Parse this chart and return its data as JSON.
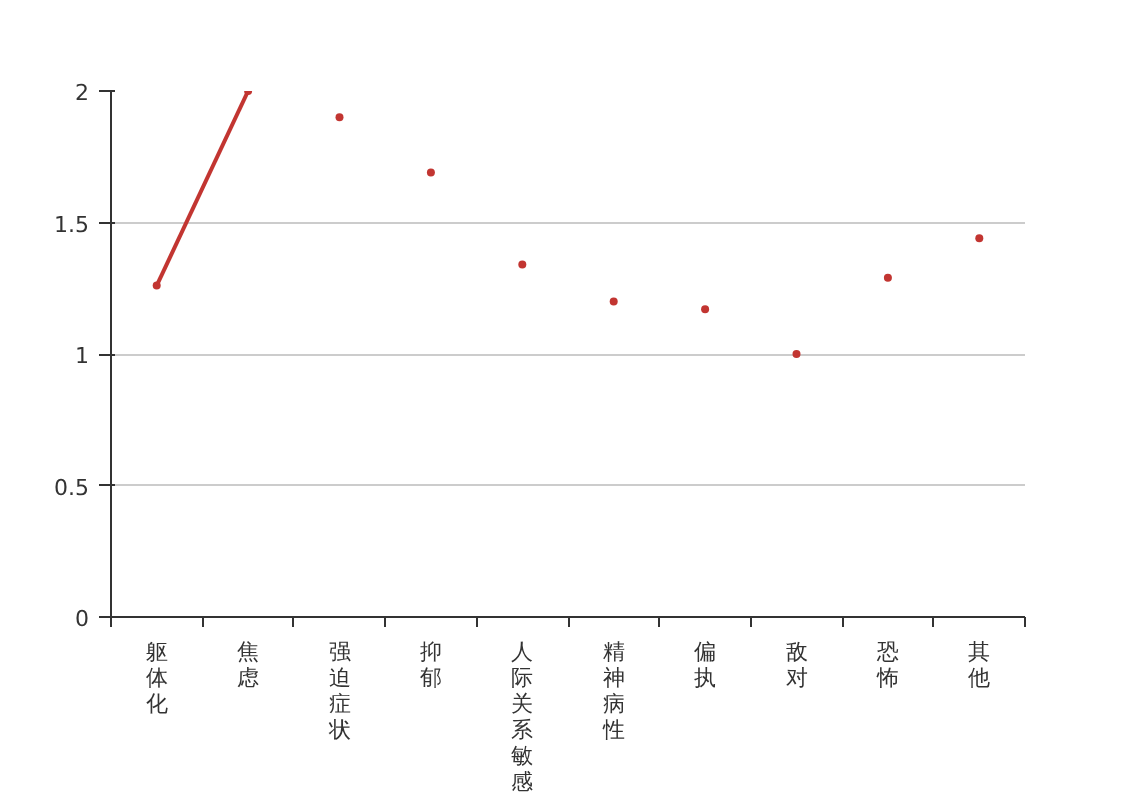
{
  "chart_data": {
    "type": "line",
    "categories": [
      "躯体化",
      "焦虑",
      "强迫症状",
      "抑郁",
      "人际关系敏感",
      "精神病性",
      "偏执",
      "敌对",
      "恐怖",
      "其他"
    ],
    "series": [
      {
        "color": "#c23531",
        "marker": "none",
        "values": [
          1.26,
          2.0,
          null,
          null,
          null,
          null,
          null,
          null,
          null,
          null
        ]
      },
      {
        "type": "scatter",
        "color": "#c23531",
        "marker": "circle",
        "values": [
          1.26,
          2.0,
          1.9,
          1.69,
          1.34,
          1.2,
          1.17,
          1.0,
          1.29,
          1.44
        ]
      }
    ],
    "ylim": [
      0,
      2
    ],
    "yticks": [
      0,
      0.5,
      1,
      1.5,
      2
    ],
    "grid": "y"
  }
}
